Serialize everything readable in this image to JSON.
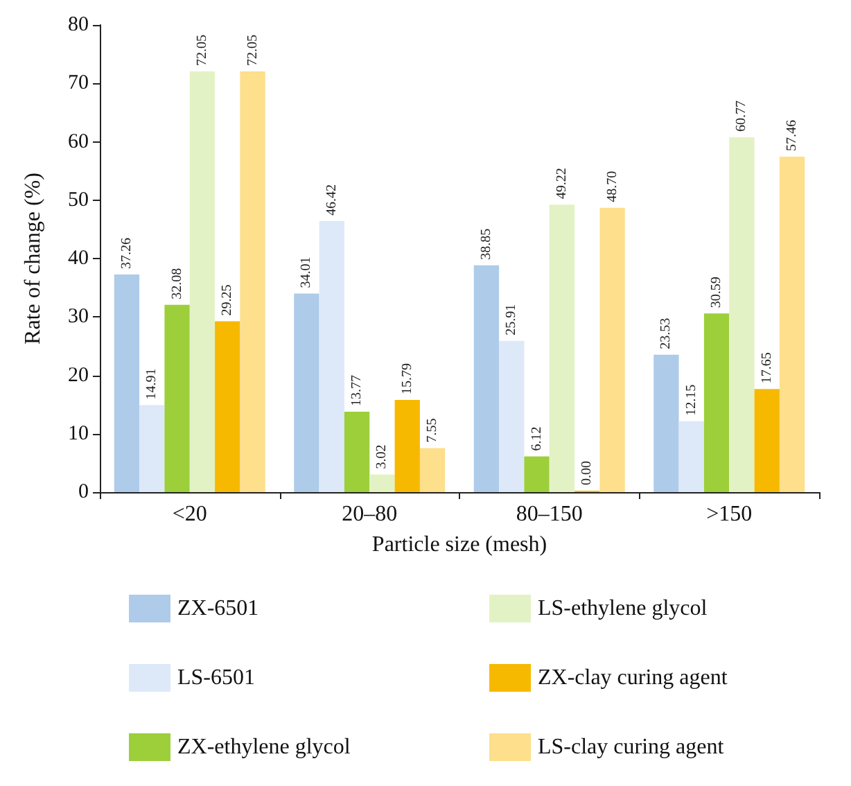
{
  "chart_data": {
    "type": "bar",
    "xlabel": "Particle size (mesh)",
    "ylabel": "Rate of change (%)",
    "categories": [
      "<20",
      "20–80",
      "80–150",
      ">150"
    ],
    "series": [
      {
        "name": "ZX-6501",
        "color": "#aecbea",
        "values": [
          37.26,
          34.01,
          38.85,
          23.53
        ],
        "value_labels": [
          "37.26",
          "34.01",
          "38.85",
          "23.53"
        ]
      },
      {
        "name": "LS-6501",
        "color": "#dde9f8",
        "values": [
          14.91,
          46.42,
          25.91,
          12.15
        ],
        "value_labels": [
          "14.91",
          "46.42",
          "25.91",
          "12.15"
        ]
      },
      {
        "name": "ZX-ethylene glycol",
        "color": "#9ccf3a",
        "values": [
          32.08,
          13.77,
          6.12,
          30.59
        ],
        "value_labels": [
          "32.08",
          "13.77",
          "6.12",
          "30.59"
        ]
      },
      {
        "name": "LS-ethylene glycol",
        "color": "#e3f2c4",
        "values": [
          72.05,
          3.02,
          49.22,
          60.77
        ],
        "value_labels": [
          "72.05",
          "3.02",
          "49.22",
          "60.77"
        ]
      },
      {
        "name": "ZX-clay curing agent",
        "color": "#f7b900",
        "values": [
          29.25,
          15.79,
          0,
          17.65
        ],
        "value_labels": [
          "29.25",
          "15.79",
          "0.00",
          "17.65"
        ]
      },
      {
        "name": "LS-clay curing agent",
        "color": "#fddf8c",
        "values": [
          72.05,
          7.55,
          48.7,
          57.46
        ],
        "value_labels": [
          "72.05",
          "7.55",
          "48.70",
          "57.46"
        ]
      }
    ],
    "ylim": [
      0,
      80
    ],
    "yticks": [
      0,
      10,
      20,
      30,
      40,
      50,
      60,
      70,
      80
    ],
    "grid": false,
    "legend": "bottom"
  }
}
